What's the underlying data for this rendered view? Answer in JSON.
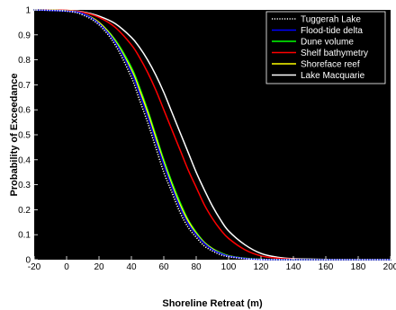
{
  "chart_data": {
    "type": "line",
    "title": "",
    "xlabel": "Shoreline Retreat (m)",
    "ylabel": "Probability of Exceedance",
    "xlim": [
      -20,
      200
    ],
    "ylim": [
      0,
      1
    ],
    "xticks": [
      "-20",
      "0",
      "20",
      "40",
      "60",
      "80",
      "100",
      "120",
      "140",
      "160",
      "180",
      "200"
    ],
    "yticks": [
      "0",
      "0.1",
      "0.2",
      "0.3",
      "0.4",
      "0.5",
      "0.6",
      "0.7",
      "0.8",
      "0.9",
      "1"
    ],
    "grid": false,
    "legend_position": "top-right",
    "x": [
      -20,
      0,
      10,
      20,
      30,
      40,
      45,
      50,
      55,
      60,
      65,
      70,
      75,
      80,
      85,
      90,
      95,
      100,
      110,
      120,
      130,
      140,
      160,
      180,
      200
    ],
    "series": [
      {
        "name": "Tuggerah Lake",
        "color": "#ffffff",
        "dash": "dotted",
        "values": [
          1.0,
          0.995,
          0.98,
          0.94,
          0.86,
          0.73,
          0.64,
          0.55,
          0.45,
          0.35,
          0.27,
          0.19,
          0.13,
          0.09,
          0.055,
          0.035,
          0.02,
          0.012,
          0.004,
          0.001,
          0.0,
          0.0,
          0.0,
          0.0,
          0.0
        ]
      },
      {
        "name": "Flood-tide delta",
        "color": "#0000ff",
        "dash": "solid",
        "values": [
          1.0,
          0.995,
          0.985,
          0.945,
          0.87,
          0.75,
          0.665,
          0.575,
          0.475,
          0.38,
          0.29,
          0.21,
          0.145,
          0.1,
          0.065,
          0.04,
          0.025,
          0.014,
          0.005,
          0.001,
          0.0,
          0.0,
          0.0,
          0.0,
          0.0
        ]
      },
      {
        "name": "Dune volume",
        "color": "#00ff00",
        "dash": "solid",
        "values": [
          1.0,
          0.996,
          0.985,
          0.95,
          0.88,
          0.77,
          0.69,
          0.6,
          0.5,
          0.4,
          0.31,
          0.23,
          0.16,
          0.11,
          0.07,
          0.045,
          0.028,
          0.016,
          0.006,
          0.002,
          0.0,
          0.0,
          0.0,
          0.0,
          0.0
        ]
      },
      {
        "name": "Shelf bathymetry",
        "color": "#ff0000",
        "dash": "solid",
        "values": [
          1.0,
          0.998,
          0.99,
          0.97,
          0.93,
          0.86,
          0.81,
          0.75,
          0.68,
          0.6,
          0.52,
          0.44,
          0.36,
          0.29,
          0.22,
          0.165,
          0.12,
          0.085,
          0.04,
          0.015,
          0.006,
          0.002,
          0.0,
          0.0,
          0.0
        ]
      },
      {
        "name": "Shoreface reef",
        "color": "#ffff00",
        "dash": "solid",
        "values": [
          1.0,
          0.996,
          0.985,
          0.95,
          0.875,
          0.76,
          0.68,
          0.59,
          0.49,
          0.39,
          0.3,
          0.22,
          0.155,
          0.105,
          0.068,
          0.043,
          0.026,
          0.015,
          0.005,
          0.001,
          0.0,
          0.0,
          0.0,
          0.0,
          0.0
        ]
      },
      {
        "name": "Lake Macquarie",
        "color": "#ffffff",
        "dash": "solid",
        "values": [
          1.0,
          0.998,
          0.992,
          0.975,
          0.945,
          0.89,
          0.85,
          0.8,
          0.74,
          0.67,
          0.59,
          0.51,
          0.43,
          0.35,
          0.28,
          0.215,
          0.16,
          0.115,
          0.06,
          0.025,
          0.01,
          0.004,
          0.001,
          0.0,
          0.0
        ]
      }
    ]
  }
}
